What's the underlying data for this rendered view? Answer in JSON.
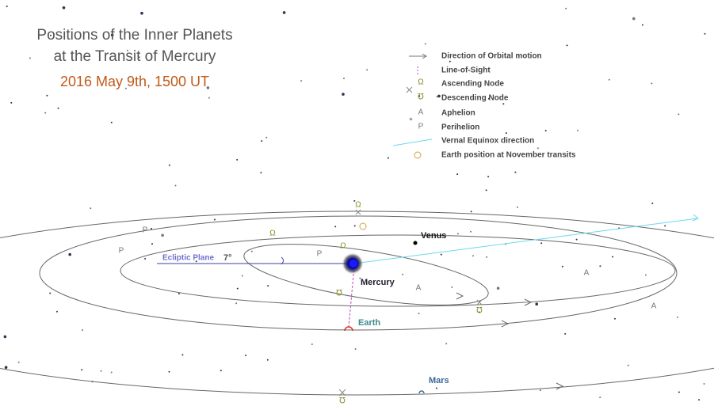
{
  "title": {
    "line1": "Positions of the Inner Planets",
    "line2": "at the Transit of Mercury",
    "date": "2016 May 9th, 1500 UT"
  },
  "legend": [
    {
      "label": "Direction of Orbital motion"
    },
    {
      "label": "Line-of-Sight"
    },
    {
      "symbol": "Ω",
      "label": "Ascending Node"
    },
    {
      "symbol": "℧",
      "label": "Descending Node"
    },
    {
      "symbol": "A",
      "label": "Aphelion"
    },
    {
      "symbol": "P",
      "label": "Perihelion"
    },
    {
      "label": "Vernal Equinox direction"
    },
    {
      "label": "Earth position at November transits"
    }
  ],
  "planets": {
    "venus": "Venus",
    "mercury": "Mercury",
    "earth": "Earth",
    "mars": "Mars"
  },
  "ecliptic": {
    "label": "Ecliptic Plane",
    "inclination": "7°"
  },
  "markers": {
    "perihelion": [
      "P",
      "P",
      "P"
    ],
    "aphelion": [
      "A",
      "A",
      "A"
    ],
    "ascending_node": [
      "Ω",
      "Ω",
      "Ω"
    ],
    "descending_node": [
      "℧",
      "℧",
      "℧"
    ]
  }
}
